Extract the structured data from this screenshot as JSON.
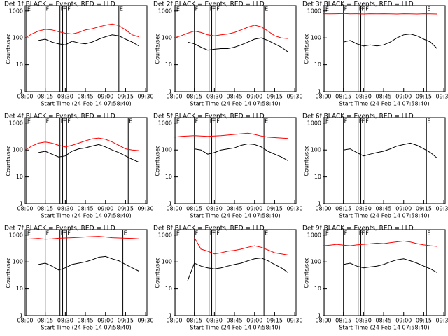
{
  "chart_data": [
    {
      "type": "line",
      "title": "Det 1f BLACK = Events, RED = LLD",
      "x_label": "Start Time (24-Feb-14 07:58:40)",
      "y_label": "Counts/sec",
      "log_y": true,
      "x": [
        "08:00",
        "08:05",
        "08:10",
        "08:15",
        "08:20",
        "08:25",
        "08:30",
        "08:35",
        "08:40",
        "08:45",
        "08:50",
        "08:55",
        "09:00",
        "09:05",
        "09:10",
        "09:15",
        "09:20",
        "09:25"
      ],
      "series": [
        {
          "name": "LLD",
          "color": "#ff0000",
          "values": [
            100,
            140,
            180,
            210,
            200,
            170,
            150,
            140,
            160,
            200,
            220,
            260,
            300,
            330,
            290,
            200,
            130,
            110
          ]
        },
        {
          "name": "Events",
          "color": "#000000",
          "values": [
            null,
            null,
            80,
            90,
            70,
            60,
            55,
            75,
            65,
            60,
            70,
            90,
            110,
            130,
            120,
            90,
            70,
            50
          ]
        }
      ],
      "markers": [
        {
          "x": "08:01",
          "label": "E"
        },
        {
          "x": "08:15",
          "label": "F"
        },
        {
          "x": "08:26",
          "label": "F"
        },
        {
          "x": "08:28",
          "label": "F"
        },
        {
          "x": "08:31",
          "label": "F"
        },
        {
          "x": "09:10",
          "label": "E"
        }
      ],
      "xlim": [
        "08:00",
        "09:31"
      ],
      "xticks": [
        "08:00",
        "08:15",
        "08:30",
        "08:45",
        "09:00",
        "09:15",
        "09:30"
      ],
      "ylim": [
        1,
        1600
      ],
      "yticks": [
        1,
        10,
        100,
        1000
      ]
    },
    {
      "type": "line",
      "title": "Det 2f BLACK = Events, RED = LLD",
      "x_label": "Start Time (24-Feb-14 07:58:40)",
      "y_label": "Counts/sec",
      "log_y": true,
      "x": [
        "08:00",
        "08:05",
        "08:10",
        "08:15",
        "08:20",
        "08:25",
        "08:30",
        "08:35",
        "08:40",
        "08:45",
        "08:50",
        "08:55",
        "09:00",
        "09:05",
        "09:10",
        "09:15",
        "09:20",
        "09:25"
      ],
      "series": [
        {
          "name": "LLD",
          "color": "#ff0000",
          "values": [
            100,
            120,
            150,
            180,
            160,
            130,
            120,
            130,
            140,
            160,
            200,
            250,
            300,
            260,
            180,
            120,
            100,
            95
          ]
        },
        {
          "name": "Events",
          "color": "#000000",
          "values": [
            null,
            null,
            70,
            60,
            45,
            35,
            38,
            40,
            40,
            45,
            55,
            70,
            90,
            100,
            80,
            60,
            45,
            30
          ]
        }
      ],
      "markers": [
        {
          "x": "08:01",
          "label": "E"
        },
        {
          "x": "08:15",
          "label": "F"
        },
        {
          "x": "08:26",
          "label": "F"
        },
        {
          "x": "08:28",
          "label": "F"
        },
        {
          "x": "08:31",
          "label": "F"
        },
        {
          "x": "09:07",
          "label": "E"
        }
      ],
      "xlim": [
        "08:00",
        "09:31"
      ],
      "xticks": [
        "08:00",
        "08:15",
        "08:30",
        "08:45",
        "09:00",
        "09:15",
        "09:30"
      ],
      "ylim": [
        1,
        1600
      ],
      "yticks": [
        1,
        10,
        100,
        1000
      ]
    },
    {
      "type": "line",
      "title": "Det 3f BLACK = Events, RED = LLD",
      "x_label": "Start Time (24-Feb-14 07:58:40)",
      "y_label": "Counts/sec",
      "log_y": true,
      "x": [
        "08:00",
        "08:05",
        "08:10",
        "08:15",
        "08:20",
        "08:25",
        "08:30",
        "08:35",
        "08:40",
        "08:45",
        "08:50",
        "08:55",
        "09:00",
        "09:05",
        "09:10",
        "09:15",
        "09:20",
        "09:25"
      ],
      "series": [
        {
          "name": "LLD",
          "color": "#ff0000",
          "values": [
            800,
            790,
            800,
            810,
            790,
            800,
            780,
            800,
            790,
            800,
            790,
            780,
            800,
            790,
            780,
            800,
            790,
            780
          ]
        },
        {
          "name": "Events",
          "color": "#000000",
          "values": [
            null,
            null,
            null,
            70,
            80,
            60,
            50,
            55,
            50,
            55,
            70,
            100,
            130,
            140,
            120,
            90,
            70,
            40
          ]
        }
      ],
      "markers": [
        {
          "x": "08:01",
          "label": "E"
        },
        {
          "x": "08:15",
          "label": "F"
        },
        {
          "x": "08:26",
          "label": "F"
        },
        {
          "x": "08:28",
          "label": "F"
        },
        {
          "x": "08:31",
          "label": "F"
        },
        {
          "x": "09:17",
          "label": "E"
        }
      ],
      "xlim": [
        "08:00",
        "09:31"
      ],
      "xticks": [
        "08:00",
        "08:15",
        "08:30",
        "08:45",
        "09:00",
        "09:15",
        "09:30"
      ],
      "ylim": [
        1,
        1600
      ],
      "yticks": [
        1,
        10,
        100,
        1000
      ]
    },
    {
      "type": "line",
      "title": "Det 4f BLACK = Events, RED = LLD",
      "x_label": "Start Time (24-Feb-14 07:58:40)",
      "y_label": "Counts/sec",
      "log_y": true,
      "x": [
        "08:00",
        "08:05",
        "08:10",
        "08:15",
        "08:20",
        "08:25",
        "08:30",
        "08:35",
        "08:40",
        "08:45",
        "08:50",
        "08:55",
        "09:00",
        "09:05",
        "09:10",
        "09:15",
        "09:20",
        "09:25"
      ],
      "series": [
        {
          "name": "LLD",
          "color": "#ff0000",
          "values": [
            100,
            140,
            180,
            200,
            180,
            150,
            130,
            150,
            180,
            220,
            260,
            280,
            250,
            200,
            150,
            110,
            100,
            95
          ]
        },
        {
          "name": "Events",
          "color": "#000000",
          "values": [
            null,
            null,
            80,
            90,
            70,
            55,
            60,
            90,
            110,
            120,
            140,
            160,
            130,
            100,
            80,
            60,
            45,
            35
          ]
        }
      ],
      "markers": [
        {
          "x": "08:01",
          "label": "E"
        },
        {
          "x": "08:15",
          "label": "F"
        },
        {
          "x": "08:26",
          "label": "F"
        },
        {
          "x": "08:28",
          "label": "F"
        },
        {
          "x": "08:31",
          "label": "F"
        },
        {
          "x": "09:17",
          "label": "E"
        }
      ],
      "xlim": [
        "08:00",
        "09:31"
      ],
      "xticks": [
        "08:00",
        "08:15",
        "08:30",
        "08:45",
        "09:00",
        "09:15",
        "09:30"
      ],
      "ylim": [
        1,
        1600
      ],
      "yticks": [
        1,
        10,
        100,
        1000
      ]
    },
    {
      "type": "line",
      "title": "Det 5f BLACK = Events, RED = LLD",
      "x_label": "Start Time (24-Feb-14 07:58:40)",
      "y_label": "Counts/sec",
      "log_y": true,
      "x": [
        "08:00",
        "08:05",
        "08:10",
        "08:15",
        "08:20",
        "08:25",
        "08:30",
        "08:35",
        "08:40",
        "08:45",
        "08:50",
        "08:55",
        "09:00",
        "09:05",
        "09:10",
        "09:15",
        "09:20",
        "09:25"
      ],
      "series": [
        {
          "name": "LLD",
          "color": "#ff0000",
          "values": [
            300,
            320,
            330,
            340,
            330,
            320,
            330,
            340,
            360,
            380,
            400,
            420,
            380,
            330,
            300,
            290,
            280,
            270
          ]
        },
        {
          "name": "Events",
          "color": "#000000",
          "values": [
            null,
            null,
            null,
            110,
            100,
            70,
            80,
            100,
            110,
            120,
            150,
            170,
            160,
            130,
            90,
            70,
            55,
            40
          ]
        }
      ],
      "markers": [
        {
          "x": "08:01",
          "label": "E"
        },
        {
          "x": "08:15",
          "label": "F"
        },
        {
          "x": "08:26",
          "label": "F"
        },
        {
          "x": "08:28",
          "label": "F"
        },
        {
          "x": "08:31",
          "label": "F"
        },
        {
          "x": "09:07",
          "label": "E"
        }
      ],
      "xlim": [
        "08:00",
        "09:31"
      ],
      "xticks": [
        "08:00",
        "08:15",
        "08:30",
        "08:45",
        "09:00",
        "09:15",
        "09:30"
      ],
      "ylim": [
        1,
        1600
      ],
      "yticks": [
        1,
        10,
        100,
        1000
      ]
    },
    {
      "type": "line",
      "title": "Det 6f BLACK = Events, RED = LLD",
      "x_label": "Start Time (24-Feb-14 07:58:40)",
      "y_label": "Counts/sec",
      "log_y": true,
      "x": [
        "08:00",
        "08:05",
        "08:10",
        "08:15",
        "08:20",
        "08:25",
        "08:30",
        "08:35",
        "08:40",
        "08:45",
        "08:50",
        "08:55",
        "09:00",
        "09:05",
        "09:10",
        "09:15",
        "09:20",
        "09:25"
      ],
      "series": [
        {
          "name": "Events",
          "color": "#000000",
          "values": [
            null,
            null,
            null,
            100,
            110,
            80,
            60,
            70,
            80,
            90,
            110,
            140,
            160,
            180,
            150,
            110,
            80,
            50
          ]
        }
      ],
      "markers": [
        {
          "x": "08:01",
          "label": "E"
        },
        {
          "x": "08:15",
          "label": "F"
        },
        {
          "x": "08:26",
          "label": "F"
        },
        {
          "x": "08:28",
          "label": "F"
        },
        {
          "x": "08:31",
          "label": "F"
        },
        {
          "x": "09:17",
          "label": "E"
        }
      ],
      "xlim": [
        "08:00",
        "09:31"
      ],
      "xticks": [
        "08:00",
        "08:15",
        "08:30",
        "08:45",
        "09:00",
        "09:15",
        "09:30"
      ],
      "ylim": [
        1,
        1600
      ],
      "yticks": [
        1,
        10,
        100,
        1000
      ]
    },
    {
      "type": "line",
      "title": "Det 7f BLACK = Events, RED = LLD",
      "x_label": "Start Time (24-Feb-14 07:58:40)",
      "y_label": "Counts/sec",
      "log_y": true,
      "x": [
        "08:00",
        "08:05",
        "08:10",
        "08:15",
        "08:20",
        "08:25",
        "08:30",
        "08:35",
        "08:40",
        "08:45",
        "08:50",
        "08:55",
        "09:00",
        "09:05",
        "09:10",
        "09:15",
        "09:20",
        "09:25"
      ],
      "series": [
        {
          "name": "LLD",
          "color": "#ff0000",
          "values": [
            700,
            720,
            750,
            700,
            720,
            760,
            780,
            800,
            820,
            850,
            880,
            900,
            850,
            800,
            780,
            760,
            750,
            720
          ]
        },
        {
          "name": "Events",
          "color": "#000000",
          "values": [
            null,
            null,
            80,
            90,
            70,
            50,
            60,
            80,
            90,
            100,
            120,
            150,
            160,
            130,
            110,
            80,
            60,
            45
          ]
        }
      ],
      "markers": [
        {
          "x": "08:01",
          "label": "E"
        },
        {
          "x": "08:15",
          "label": "F"
        },
        {
          "x": "08:26",
          "label": "F"
        },
        {
          "x": "08:28",
          "label": "F"
        },
        {
          "x": "08:31",
          "label": "F"
        },
        {
          "x": "09:13",
          "label": "E"
        }
      ],
      "xlim": [
        "08:00",
        "09:31"
      ],
      "xticks": [
        "08:00",
        "08:15",
        "08:30",
        "08:45",
        "09:00",
        "09:15",
        "09:30"
      ],
      "ylim": [
        1,
        1600
      ],
      "yticks": [
        1,
        10,
        100,
        1000
      ]
    },
    {
      "type": "line",
      "title": "Det 8f BLACK = Events, RED = LLD",
      "x_label": "Start Time (24-Feb-14 07:58:40)",
      "y_label": "Counts/sec",
      "log_y": true,
      "x": [
        "08:00",
        "08:05",
        "08:10",
        "08:15",
        "08:20",
        "08:25",
        "08:30",
        "08:35",
        "08:40",
        "08:45",
        "08:50",
        "08:55",
        "09:00",
        "09:05",
        "09:10",
        "09:15",
        "09:20",
        "09:25"
      ],
      "series": [
        {
          "name": "LLD",
          "color": "#ff0000",
          "values": [
            null,
            null,
            null,
            800,
            300,
            250,
            200,
            220,
            250,
            270,
            300,
            350,
            400,
            350,
            280,
            220,
            200,
            180
          ]
        },
        {
          "name": "Events",
          "color": "#000000",
          "values": [
            null,
            null,
            20,
            90,
            70,
            60,
            55,
            60,
            70,
            80,
            90,
            110,
            130,
            140,
            110,
            80,
            60,
            40
          ]
        }
      ],
      "markers": [
        {
          "x": "08:01",
          "label": "E"
        },
        {
          "x": "08:15",
          "label": "F"
        },
        {
          "x": "08:26",
          "label": "F"
        },
        {
          "x": "08:28",
          "label": "F"
        },
        {
          "x": "08:31",
          "label": "F"
        },
        {
          "x": "09:07",
          "label": "E"
        }
      ],
      "xlim": [
        "08:00",
        "09:31"
      ],
      "xticks": [
        "08:00",
        "08:15",
        "08:30",
        "08:45",
        "09:00",
        "09:15",
        "09:30"
      ],
      "ylim": [
        1,
        1600
      ],
      "yticks": [
        1,
        10,
        100,
        1000
      ]
    },
    {
      "type": "line",
      "title": "Det 9f BLACK = Events, RED = LLD",
      "x_label": "Start Time (24-Feb-14 07:58:40)",
      "y_label": "Counts/sec",
      "log_y": true,
      "x": [
        "08:00",
        "08:05",
        "08:10",
        "08:15",
        "08:20",
        "08:25",
        "08:30",
        "08:35",
        "08:40",
        "08:45",
        "08:50",
        "08:55",
        "09:00",
        "09:05",
        "09:10",
        "09:15",
        "09:20",
        "09:25"
      ],
      "series": [
        {
          "name": "LLD",
          "color": "#ff0000",
          "values": [
            400,
            420,
            450,
            420,
            400,
            430,
            450,
            470,
            500,
            480,
            520,
            560,
            600,
            550,
            480,
            430,
            400,
            380
          ]
        },
        {
          "name": "Events",
          "color": "#000000",
          "values": [
            null,
            null,
            null,
            80,
            90,
            70,
            60,
            65,
            70,
            80,
            100,
            120,
            130,
            110,
            90,
            70,
            55,
            40
          ]
        }
      ],
      "markers": [
        {
          "x": "08:01",
          "label": "E"
        },
        {
          "x": "08:15",
          "label": "F"
        },
        {
          "x": "08:26",
          "label": "F"
        },
        {
          "x": "08:28",
          "label": "F"
        },
        {
          "x": "08:31",
          "label": "F"
        },
        {
          "x": "09:17",
          "label": "E"
        }
      ],
      "xlim": [
        "08:00",
        "09:31"
      ],
      "xticks": [
        "08:00",
        "08:15",
        "08:30",
        "08:45",
        "09:00",
        "09:15",
        "09:30"
      ],
      "ylim": [
        1,
        1600
      ],
      "yticks": [
        1,
        10,
        100,
        1000
      ]
    }
  ]
}
